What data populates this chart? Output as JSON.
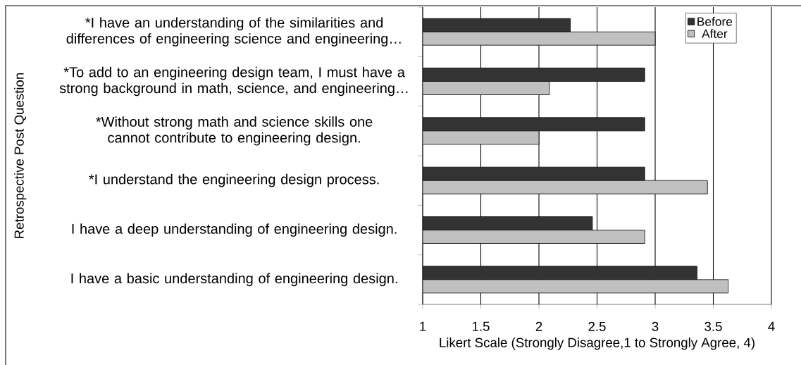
{
  "chart_data": {
    "type": "bar",
    "orientation": "horizontal",
    "categories": [
      "*I have an understanding of the similarities and differences of engineering science and engineering…",
      "*To add to an engineering design team, I must have a strong background in math, science, and engineering…",
      "*Without strong math and science skills one cannot contribute to engineering design.",
      "*I understand the engineering design process.",
      "I have a deep understanding of engineering design.",
      "I have a basic understanding of engineering design."
    ],
    "series": [
      {
        "name": "Before",
        "color": "#333333",
        "values": [
          2.27,
          2.91,
          2.91,
          2.91,
          2.46,
          3.36
        ]
      },
      {
        "name": "After",
        "color": "#c0c0c0",
        "values": [
          3.0,
          2.09,
          2.0,
          3.45,
          2.91,
          3.63
        ]
      }
    ],
    "xlim": [
      1,
      4
    ],
    "xticks": [
      1,
      1.5,
      2,
      2.5,
      3,
      3.5,
      4
    ],
    "xlabel": "Likert Scale (Strongly Disagree,1 to Strongly Agree, 4)",
    "ylabel": "Retrospective Post Question",
    "grid": "x",
    "legend": "top right"
  }
}
